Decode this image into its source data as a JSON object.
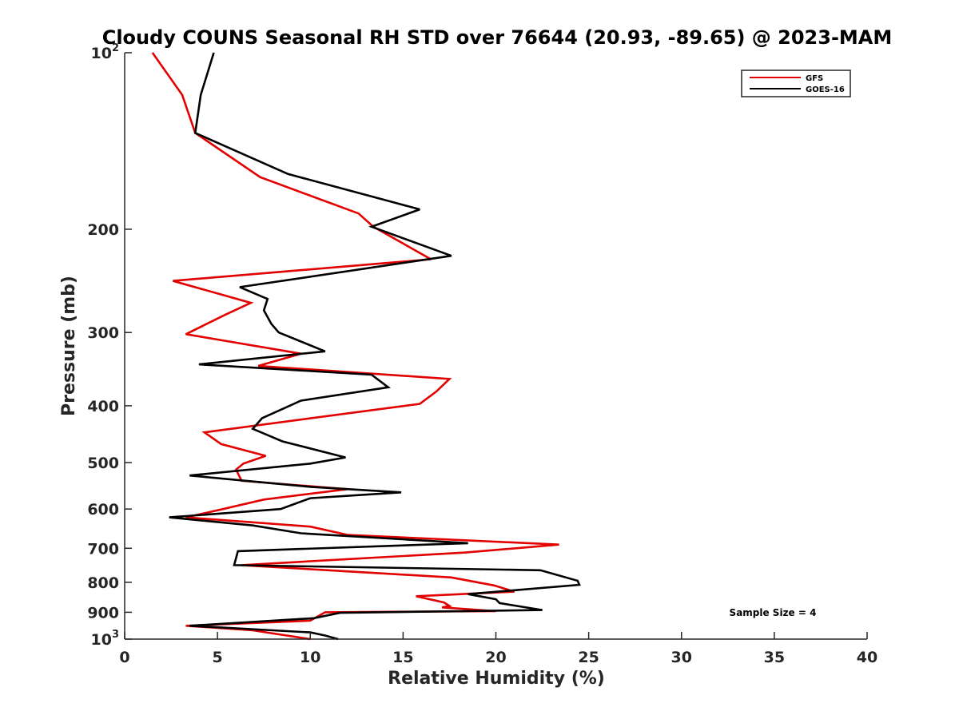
{
  "chart_data": {
    "type": "line",
    "title": "Cloudy COUNS Seasonal RH STD over 76644 (20.93, -89.65) @ 2023-MAM",
    "xlabel": "Relative Humidity (%)",
    "ylabel": "Pressure (mb)",
    "xlim": [
      0,
      40
    ],
    "ylim": [
      100,
      1000
    ],
    "yscale": "log",
    "yreverse": true,
    "x_ticks": [
      0,
      5,
      10,
      15,
      20,
      25,
      30,
      35,
      40
    ],
    "x_tick_labels": [
      "0",
      "5",
      "10",
      "15",
      "20",
      "25",
      "30",
      "35",
      "40"
    ],
    "y_ticks": [
      100,
      200,
      300,
      400,
      500,
      600,
      700,
      800,
      900,
      1000
    ],
    "y_tick_labels": [
      {
        "base": "10",
        "exp": "2"
      },
      {
        "base": "200",
        "exp": ""
      },
      {
        "base": "300",
        "exp": ""
      },
      {
        "base": "400",
        "exp": ""
      },
      {
        "base": "500",
        "exp": ""
      },
      {
        "base": "600",
        "exp": ""
      },
      {
        "base": "700",
        "exp": ""
      },
      {
        "base": "800",
        "exp": ""
      },
      {
        "base": "900",
        "exp": ""
      },
      {
        "base": "10",
        "exp": "3"
      }
    ],
    "grid": false,
    "legend_position": "top-right",
    "series": [
      {
        "name": "GFS",
        "color": "#e30000",
        "points": [
          [
            1.5,
            100
          ],
          [
            3.1,
            118
          ],
          [
            3.8,
            137
          ],
          [
            7.3,
            163
          ],
          [
            12.6,
            188
          ],
          [
            13.4,
            198
          ],
          [
            16.5,
            225
          ],
          [
            2.6,
            245
          ],
          [
            6.8,
            267
          ],
          [
            5.4,
            280
          ],
          [
            3.3,
            302
          ],
          [
            9.5,
            326
          ],
          [
            7.2,
            342
          ],
          [
            17.5,
            360
          ],
          [
            16.8,
            378
          ],
          [
            15.9,
            397
          ],
          [
            4.3,
            444
          ],
          [
            5.2,
            465
          ],
          [
            7.6,
            487
          ],
          [
            6.4,
            502
          ],
          [
            6.0,
            514
          ],
          [
            6.3,
            537
          ],
          [
            12.0,
            555
          ],
          [
            7.5,
            578
          ],
          [
            5.3,
            600
          ],
          [
            3.3,
            620
          ],
          [
            10.0,
            643
          ],
          [
            12.0,
            664
          ],
          [
            23.4,
            690
          ],
          [
            18.3,
            712
          ],
          [
            6.3,
            748
          ],
          [
            17.6,
            785
          ],
          [
            19.9,
            810
          ],
          [
            21.0,
            830
          ],
          [
            15.7,
            845
          ],
          [
            17.2,
            866
          ],
          [
            17.5,
            878
          ],
          [
            17.1,
            883
          ],
          [
            20.0,
            896
          ],
          [
            10.8,
            900
          ],
          [
            10.0,
            930
          ],
          [
            3.3,
            949
          ],
          [
            6.9,
            966
          ],
          [
            10.0,
            1000
          ]
        ]
      },
      {
        "name": "GOES-16",
        "color": "#000000",
        "points": [
          [
            4.8,
            100
          ],
          [
            4.1,
            118
          ],
          [
            3.8,
            137
          ],
          [
            8.8,
            161
          ],
          [
            15.9,
            185
          ],
          [
            13.3,
            198
          ],
          [
            17.6,
            222
          ],
          [
            6.2,
            251
          ],
          [
            7.7,
            263
          ],
          [
            7.5,
            275
          ],
          [
            7.9,
            290
          ],
          [
            8.3,
            300
          ],
          [
            10.8,
            323
          ],
          [
            4.0,
            340
          ],
          [
            13.3,
            354
          ],
          [
            14.2,
            372
          ],
          [
            9.5,
            392
          ],
          [
            7.4,
            420
          ],
          [
            6.9,
            438
          ],
          [
            8.5,
            460
          ],
          [
            11.9,
            490
          ],
          [
            10.0,
            502
          ],
          [
            3.5,
            526
          ],
          [
            10.0,
            550
          ],
          [
            14.9,
            562
          ],
          [
            10.0,
            575
          ],
          [
            8.4,
            600
          ],
          [
            2.4,
            620
          ],
          [
            6.9,
            640
          ],
          [
            9.5,
            660
          ],
          [
            18.5,
            686
          ],
          [
            6.1,
            708
          ],
          [
            5.9,
            748
          ],
          [
            22.4,
            763
          ],
          [
            24.4,
            795
          ],
          [
            24.5,
            808
          ],
          [
            18.5,
            838
          ],
          [
            20.0,
            855
          ],
          [
            20.2,
            868
          ],
          [
            22.5,
            892
          ],
          [
            11.6,
            902
          ],
          [
            10.2,
            921
          ],
          [
            3.5,
            949
          ],
          [
            10.0,
            974
          ],
          [
            10.8,
            986
          ],
          [
            11.5,
            1000
          ]
        ]
      }
    ],
    "annotation": "Sample Size = 4"
  }
}
